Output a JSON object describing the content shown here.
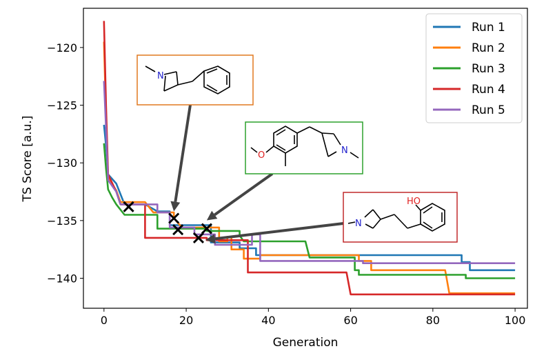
{
  "chart_data": {
    "type": "line",
    "title": "",
    "xlabel": "Generation",
    "ylabel": "TS Score [a.u.]",
    "xlim": [
      -5,
      103
    ],
    "ylim": [
      -142.6,
      -116.6
    ],
    "xticks": [
      0,
      20,
      40,
      60,
      80,
      100
    ],
    "yticks": [
      -120,
      -125,
      -130,
      -135,
      -140
    ],
    "grid": false,
    "legend_position": "top-right",
    "series": [
      {
        "name": "Run 1",
        "color": "#1f77b4",
        "points": [
          [
            0,
            -126.7
          ],
          [
            0.5,
            -128.5
          ],
          [
            1,
            -131
          ],
          [
            3,
            -131.8
          ],
          [
            5,
            -133.6
          ],
          [
            10,
            -133.6
          ],
          [
            13,
            -134.2
          ],
          [
            16,
            -134.2
          ],
          [
            16,
            -135.4
          ],
          [
            26,
            -135.4
          ],
          [
            26,
            -136.9
          ],
          [
            33,
            -136.9
          ],
          [
            33,
            -137.4
          ],
          [
            37,
            -137.4
          ],
          [
            37,
            -138
          ],
          [
            62,
            -138
          ],
          [
            62,
            -138
          ],
          [
            87,
            -138
          ],
          [
            87,
            -138.6
          ],
          [
            89,
            -138.6
          ],
          [
            89,
            -139.3
          ],
          [
            100,
            -139.3
          ]
        ]
      },
      {
        "name": "Run 2",
        "color": "#ff7f0e",
        "points": [
          [
            0,
            -119.5
          ],
          [
            0.5,
            -126
          ],
          [
            1,
            -131.3
          ],
          [
            3,
            -132.4
          ],
          [
            4,
            -133.4
          ],
          [
            10,
            -133.4
          ],
          [
            12,
            -134.3
          ],
          [
            17,
            -134.3
          ],
          [
            17,
            -134.8
          ],
          [
            19,
            -135.6
          ],
          [
            28,
            -135.6
          ],
          [
            28,
            -136.8
          ],
          [
            30,
            -136.8
          ],
          [
            30,
            -136.4
          ],
          [
            31,
            -136.4
          ],
          [
            31,
            -137.5
          ],
          [
            34,
            -137.5
          ],
          [
            34,
            -138.3
          ],
          [
            38,
            -138.3
          ],
          [
            38,
            -138
          ],
          [
            62,
            -138
          ],
          [
            62,
            -138.5
          ],
          [
            65,
            -138.5
          ],
          [
            65,
            -139.3
          ],
          [
            83,
            -139.3
          ],
          [
            84,
            -141.3
          ],
          [
            100,
            -141.3
          ]
        ]
      },
      {
        "name": "Run 3",
        "color": "#2ca02c",
        "points": [
          [
            0,
            -128.3
          ],
          [
            0.5,
            -130.5
          ],
          [
            1,
            -132.3
          ],
          [
            2,
            -133
          ],
          [
            3,
            -133.6
          ],
          [
            5,
            -134.5
          ],
          [
            13,
            -134.5
          ],
          [
            13,
            -135.7
          ],
          [
            22,
            -135.7
          ],
          [
            25,
            -135.7
          ],
          [
            25,
            -135.9
          ],
          [
            33,
            -135.9
          ],
          [
            33,
            -136.3
          ],
          [
            34,
            -136.8
          ],
          [
            49,
            -136.8
          ],
          [
            50,
            -138.2
          ],
          [
            61,
            -138.2
          ],
          [
            61,
            -139.3
          ],
          [
            62,
            -139.3
          ],
          [
            62,
            -139.7
          ],
          [
            88,
            -139.7
          ],
          [
            88,
            -140
          ],
          [
            100,
            -140
          ]
        ]
      },
      {
        "name": "Run 4",
        "color": "#d62728",
        "points": [
          [
            0,
            -117.7
          ],
          [
            0.5,
            -125
          ],
          [
            1,
            -131
          ],
          [
            3,
            -132.5
          ],
          [
            4,
            -133.6
          ],
          [
            10,
            -133.6
          ],
          [
            10,
            -136.5
          ],
          [
            25,
            -136.5
          ],
          [
            25,
            -136.7
          ],
          [
            35,
            -136.7
          ],
          [
            35,
            -139.5
          ],
          [
            59,
            -139.5
          ],
          [
            60,
            -141.4
          ],
          [
            100,
            -141.4
          ]
        ]
      },
      {
        "name": "Run 5",
        "color": "#9467bd",
        "points": [
          [
            0,
            -122.9
          ],
          [
            0.5,
            -127
          ],
          [
            1,
            -131.5
          ],
          [
            3,
            -132.5
          ],
          [
            4,
            -133.6
          ],
          [
            13,
            -133.6
          ],
          [
            13,
            -134.3
          ],
          [
            16,
            -134.3
          ],
          [
            16,
            -135.6
          ],
          [
            22,
            -135.6
          ],
          [
            22,
            -136.2
          ],
          [
            27,
            -136.2
          ],
          [
            27,
            -137.1
          ],
          [
            36,
            -137.1
          ],
          [
            36,
            -136.2
          ],
          [
            38,
            -136.2
          ],
          [
            38,
            -138.5
          ],
          [
            63,
            -138.5
          ],
          [
            63,
            -138.7
          ],
          [
            100,
            -138.7
          ]
        ]
      }
    ],
    "markers": [
      {
        "x": 6,
        "y": -133.8
      },
      {
        "x": 17,
        "y": -134.8
      },
      {
        "x": 18,
        "y": -135.8
      },
      {
        "x": 23,
        "y": -136.5
      },
      {
        "x": 25,
        "y": -135.7
      }
    ],
    "annotations": [
      {
        "frame_color": "#e0781f",
        "arrow_to": {
          "x": 17,
          "y": -134.8
        },
        "atoms": [
          "N"
        ]
      },
      {
        "frame_color": "#2ca02c",
        "arrow_to": {
          "x": 25,
          "y": -135.7
        },
        "atoms": [
          "O",
          "N"
        ]
      },
      {
        "frame_color": "#c0282a",
        "arrow_to": {
          "x": 23,
          "y": -136.5
        },
        "atoms": [
          "HO",
          "N"
        ]
      }
    ]
  }
}
